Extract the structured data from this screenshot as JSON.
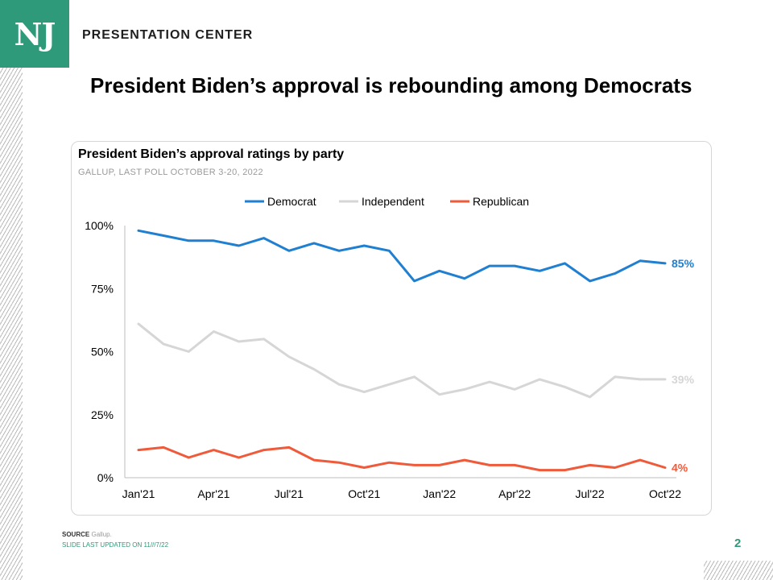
{
  "brand": {
    "logo_text": "NJ",
    "section_label": "PRESENTATION CENTER",
    "accent_color": "#2e9a7a"
  },
  "slide": {
    "title": "President Biden’s approval is rebounding among Democrats",
    "page_number": "2"
  },
  "footer": {
    "source_label": "SOURCE",
    "source_text": "Gallup.",
    "updated_label": "SLIDE LAST UPDATED ON",
    "updated_date": "11///7/22"
  },
  "chart_data": {
    "type": "line",
    "title": "President Biden’s approval ratings by party",
    "subtitle": "GALLUP, LAST POLL OCTOBER 3-20, 2022",
    "ylim": [
      0,
      100
    ],
    "y_ticks": [
      {
        "value": 100,
        "label": "100%"
      },
      {
        "value": 75,
        "label": "75%"
      },
      {
        "value": 50,
        "label": "50%"
      },
      {
        "value": 25,
        "label": "25%"
      },
      {
        "value": 0,
        "label": "0%"
      }
    ],
    "x_ticks": [
      {
        "label": "Jan'21",
        "index": 0
      },
      {
        "label": "Apr'21",
        "index": 3
      },
      {
        "label": "Jul'21",
        "index": 6
      },
      {
        "label": "Oct'21",
        "index": 9
      },
      {
        "label": "Jan'22",
        "index": 12
      },
      {
        "label": "Apr'22",
        "index": 15
      },
      {
        "label": "Jul'22",
        "index": 18
      },
      {
        "label": "Oct'22",
        "index": 21
      }
    ],
    "legend_position": "top-center",
    "series": [
      {
        "name": "Democrat",
        "color": "#1f7fd1",
        "end_label": "85%",
        "values": [
          98,
          96,
          94,
          94,
          92,
          95,
          90,
          93,
          90,
          92,
          90,
          78,
          82,
          79,
          84,
          84,
          82,
          85,
          78,
          81,
          86,
          85
        ]
      },
      {
        "name": "Independent",
        "color": "#d6d6d6",
        "end_label": "39%",
        "values": [
          61,
          53,
          50,
          58,
          54,
          55,
          48,
          43,
          37,
          34,
          37,
          40,
          33,
          35,
          38,
          35,
          39,
          36,
          32,
          40,
          39,
          39
        ]
      },
      {
        "name": "Republican",
        "color": "#ef5a3a",
        "end_label": "4%",
        "values": [
          11,
          12,
          8,
          11,
          8,
          11,
          12,
          7,
          6,
          4,
          6,
          5,
          5,
          7,
          5,
          5,
          3,
          3,
          5,
          4,
          7,
          4
        ]
      }
    ]
  }
}
